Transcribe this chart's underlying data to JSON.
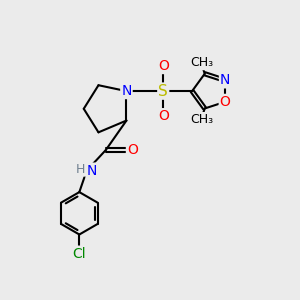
{
  "bg_color": "#ebebeb",
  "bond_color": "#000000",
  "N_color": "#0000ff",
  "O_color": "#ff0000",
  "S_color": "#bbbb00",
  "Cl_color": "#008800",
  "H_color": "#708090",
  "line_width": 1.5,
  "font_size": 10,
  "fig_size": [
    3.0,
    3.0
  ],
  "dpi": 100,
  "xlim": [
    0,
    10
  ],
  "ylim": [
    0,
    10
  ]
}
